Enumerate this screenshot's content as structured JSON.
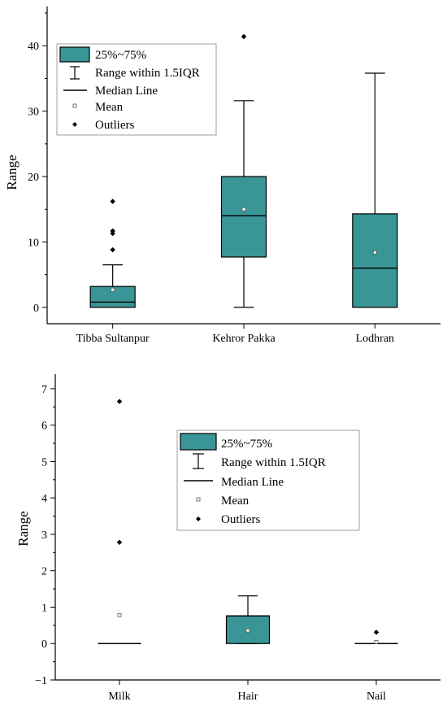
{
  "colors": {
    "box_fill": "#3a9597",
    "outlier": "#000000",
    "mean": "#ffffff"
  },
  "chart_data": [
    {
      "type": "box",
      "ylabel": "Range",
      "xlabel": "",
      "ylim": [
        -2.5,
        46
      ],
      "yticks": [
        0,
        10,
        20,
        30,
        40
      ],
      "y_minor_step": 5,
      "legend": {
        "placement": "top-left",
        "entries": [
          "25%~75%",
          "Range within 1.5IQR",
          "Median Line",
          "Mean",
          "Outliers"
        ]
      },
      "categories": [
        "Tibba Sultanpur",
        "Kehror Pakka",
        "Lodhran"
      ],
      "boxes": [
        {
          "q1": 0,
          "q3": 3.2,
          "median": 0.8,
          "whisker_low": 0,
          "whisker_high": 6.5,
          "mean": 2.7,
          "outliers": [
            8.8,
            11.3,
            11.7,
            16.2
          ]
        },
        {
          "q1": 7.7,
          "q3": 20.0,
          "median": 14.0,
          "whisker_low": 0,
          "whisker_high": 31.6,
          "mean": 15.0,
          "outliers": [
            41.4
          ]
        },
        {
          "q1": 0,
          "q3": 14.3,
          "median": 6.0,
          "whisker_low": 0,
          "whisker_high": 35.8,
          "mean": 8.4,
          "outliers": []
        }
      ]
    },
    {
      "type": "box",
      "ylabel": "Range",
      "xlabel": "",
      "ylim": [
        -1,
        7.4
      ],
      "yticks": [
        -1,
        0,
        1,
        2,
        3,
        4,
        5,
        6,
        7
      ],
      "y_minor_step": 0.5,
      "legend": {
        "placement": "center-right",
        "entries": [
          "25%~75%",
          "Range within 1.5IQR",
          "Median Line",
          "Mean",
          "Outliers"
        ]
      },
      "categories": [
        "Milk",
        "Hair",
        "Nail"
      ],
      "boxes": [
        {
          "q1": 0,
          "q3": 0,
          "median": 0,
          "whisker_low": 0,
          "whisker_high": 0,
          "mean": 0.78,
          "outliers": [
            2.78,
            6.65
          ]
        },
        {
          "q1": 0,
          "q3": 0.76,
          "median": 0.76,
          "whisker_low": 0,
          "whisker_high": 1.31,
          "mean": 0.36,
          "outliers": []
        },
        {
          "q1": 0,
          "q3": 0,
          "median": 0,
          "whisker_low": 0,
          "whisker_high": 0,
          "mean": 0.04,
          "outliers": [
            0.31
          ]
        }
      ]
    }
  ]
}
